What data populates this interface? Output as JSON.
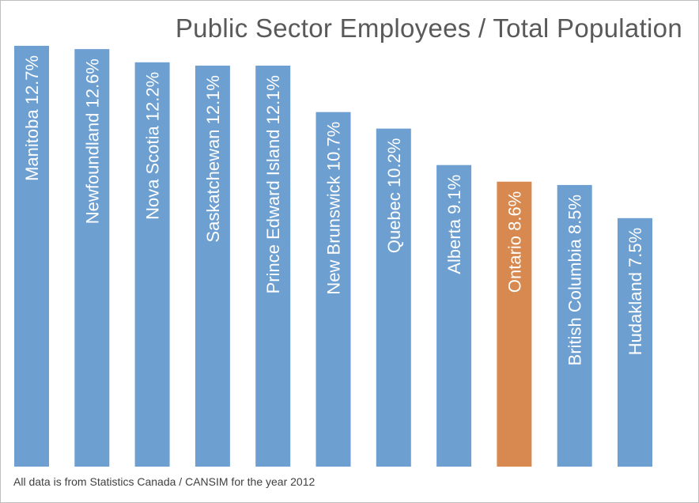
{
  "title": "Public Sector Employees / Total Population",
  "footnote": "All data is from Statistics Canada / CANSIM for the year 2012",
  "colors": {
    "bar": "#6d9fd1",
    "highlight": "#d7894f",
    "title": "#595959",
    "footnote": "#404040"
  },
  "chart_data": {
    "type": "bar",
    "title": "Public Sector Employees / Total Population",
    "categories": [
      "Manitoba",
      "Newfoundland",
      "Nova Scotia",
      "Saskatchewan",
      "Prince Edward Island",
      "New Brunswick",
      "Quebec",
      "Alberta",
      "Ontario",
      "British Columbia",
      "Hudakland"
    ],
    "values": [
      12.7,
      12.6,
      12.2,
      12.1,
      12.1,
      10.7,
      10.2,
      9.1,
      8.6,
      8.5,
      7.5
    ],
    "value_labels": [
      "12.7%",
      "12.6%",
      "12.2%",
      "12.1%",
      "12.1%",
      "10.7%",
      "10.2%",
      "9.1%",
      "8.6%",
      "8.5%",
      "7.5%"
    ],
    "highlighted": [
      "Ontario"
    ],
    "label_position": "inside bar, rotated vertical",
    "xlabel": "",
    "ylabel": "",
    "grid": false,
    "legend": "none"
  }
}
